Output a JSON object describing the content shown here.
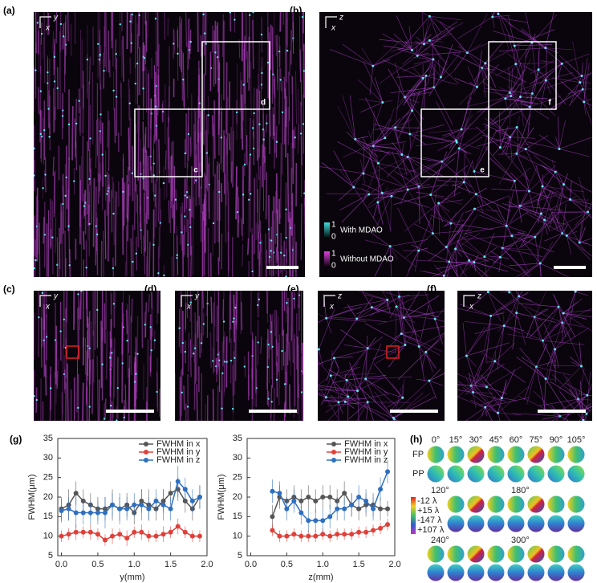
{
  "images": [
    {
      "label": "(a)",
      "axis_h": "y",
      "axis_v": "x",
      "boxes": [
        "d",
        "c"
      ]
    },
    {
      "label": "(b)",
      "axis_h": "z",
      "axis_v": "x",
      "boxes": [
        "f",
        "e"
      ],
      "legend": [
        {
          "max": "1",
          "min": "0",
          "text": "With MDAO"
        },
        {
          "max": "1",
          "min": "0",
          "text": "Without MDAO"
        }
      ]
    },
    {
      "label": "(c)",
      "axis_h": "y",
      "axis_v": "x"
    },
    {
      "label": "(d)",
      "axis_h": "y",
      "axis_v": "x"
    },
    {
      "label": "(e)",
      "axis_h": "z",
      "axis_v": "x"
    },
    {
      "label": "(f)",
      "axis_h": "z",
      "axis_v": "x"
    }
  ],
  "g_label": "(g)",
  "chart_data": [
    {
      "type": "line",
      "xlabel": "y(mm)",
      "ylabel": "FWHM(μm)",
      "xlim": [
        -0.05,
        2.0
      ],
      "ylim": [
        5,
        35
      ],
      "xticks": [
        {
          "value": 0,
          "label": "0.0"
        },
        {
          "value": 0.5,
          "label": "0.5"
        },
        {
          "value": 1,
          "label": "1.0"
        },
        {
          "value": 1.5,
          "label": "1.5"
        },
        {
          "value": 2,
          "label": "2.0"
        }
      ],
      "yticks": [
        5,
        10,
        15,
        20,
        25,
        30,
        35
      ],
      "x": [
        0,
        0.1,
        0.2,
        0.3,
        0.4,
        0.5,
        0.6,
        0.7,
        0.8,
        0.9,
        1.0,
        1.1,
        1.2,
        1.3,
        1.4,
        1.5,
        1.6,
        1.7,
        1.8,
        1.9
      ],
      "series": [
        {
          "name": "FWHM in x",
          "color": "#555555",
          "values": [
            17,
            18,
            21,
            19,
            18,
            17,
            17,
            18,
            17,
            18,
            16,
            19,
            18,
            17,
            19,
            21,
            22,
            19,
            17,
            20
          ],
          "errors": [
            3,
            4,
            3,
            3,
            3,
            3,
            3,
            4,
            3,
            3,
            3,
            3,
            4,
            3,
            3,
            3,
            3,
            3,
            3,
            3
          ]
        },
        {
          "name": "FWHM in y",
          "color": "#e0403a",
          "values": [
            10,
            10.5,
            11,
            11,
            11,
            10.5,
            9,
            10,
            10.5,
            9.5,
            11,
            11,
            10,
            10,
            10.5,
            11,
            12.5,
            11,
            10,
            10
          ],
          "errors": [
            1.5,
            1.5,
            2,
            1.5,
            2,
            1.5,
            1.5,
            2,
            1.5,
            2,
            1.5,
            2,
            1.5,
            1.5,
            2,
            1.5,
            2,
            1.5,
            1.5,
            1.5
          ]
        },
        {
          "name": "FWHM in z",
          "color": "#2f6fc0",
          "values": [
            16.5,
            17,
            16,
            16,
            16,
            16,
            16,
            18,
            17,
            17,
            18,
            18,
            17,
            19,
            18,
            17,
            24,
            22,
            19,
            20
          ],
          "errors": [
            3,
            3,
            4,
            3,
            3,
            3,
            4,
            3,
            4,
            3,
            3,
            4,
            3,
            3,
            4,
            3,
            4,
            3,
            3,
            3
          ]
        }
      ]
    },
    {
      "type": "line",
      "xlabel": "z(mm)",
      "ylabel": "FWHM(μm)",
      "xlim": [
        -0.05,
        2.0
      ],
      "ylim": [
        5,
        35
      ],
      "xticks": [
        {
          "value": 0,
          "label": "0.0"
        },
        {
          "value": 0.5,
          "label": "0.5"
        },
        {
          "value": 1,
          "label": "1.0"
        },
        {
          "value": 1.5,
          "label": "1.5"
        },
        {
          "value": 2,
          "label": "2.0"
        }
      ],
      "yticks": [
        5,
        10,
        15,
        20,
        25,
        30,
        35
      ],
      "x": [
        0.3,
        0.4,
        0.5,
        0.6,
        0.7,
        0.8,
        0.9,
        1.0,
        1.1,
        1.2,
        1.3,
        1.4,
        1.5,
        1.6,
        1.7,
        1.8,
        1.9
      ],
      "series": [
        {
          "name": "FWHM in x",
          "color": "#555555",
          "values": [
            15,
            20,
            19,
            20,
            19,
            20,
            19,
            20,
            20,
            19,
            21,
            18,
            17,
            18,
            18,
            17,
            17
          ],
          "errors": [
            3,
            3,
            3,
            3,
            3,
            3,
            3,
            3,
            3,
            3,
            3,
            3,
            3,
            3,
            3,
            3,
            2
          ]
        },
        {
          "name": "FWHM in y",
          "color": "#e0403a",
          "values": [
            11.5,
            10,
            10,
            10.5,
            10,
            10,
            10,
            10.5,
            10,
            10.5,
            10.5,
            10.5,
            11,
            11,
            11.5,
            12,
            13
          ],
          "errors": [
            1.5,
            1.5,
            1.5,
            1.5,
            1.5,
            1.5,
            1.5,
            1.5,
            1.5,
            1.5,
            1.5,
            1.5,
            1.5,
            1.5,
            1.5,
            1.5,
            1.5
          ]
        },
        {
          "name": "FWHM in z",
          "color": "#2f6fc0",
          "values": [
            21.5,
            21,
            17,
            19,
            16,
            14,
            14,
            14,
            15,
            17,
            17,
            18,
            20,
            19,
            17,
            22,
            26.5
          ],
          "errors": [
            3,
            3,
            3,
            3,
            3,
            3,
            3,
            3,
            3,
            3,
            3,
            3,
            3,
            3,
            3,
            3,
            3
          ]
        }
      ]
    }
  ],
  "h": {
    "label": "(h)",
    "rows": [
      "FP",
      "PP"
    ],
    "angles": [
      "0°",
      "15°",
      "30°",
      "45°",
      "60°",
      "75°",
      "90°",
      "105°"
    ],
    "more_angles": [
      "120°",
      "180°",
      "240°",
      "300°"
    ],
    "scale": [
      "-12 λ",
      "+15 λ",
      "-147 λ",
      "+107 λ"
    ]
  }
}
